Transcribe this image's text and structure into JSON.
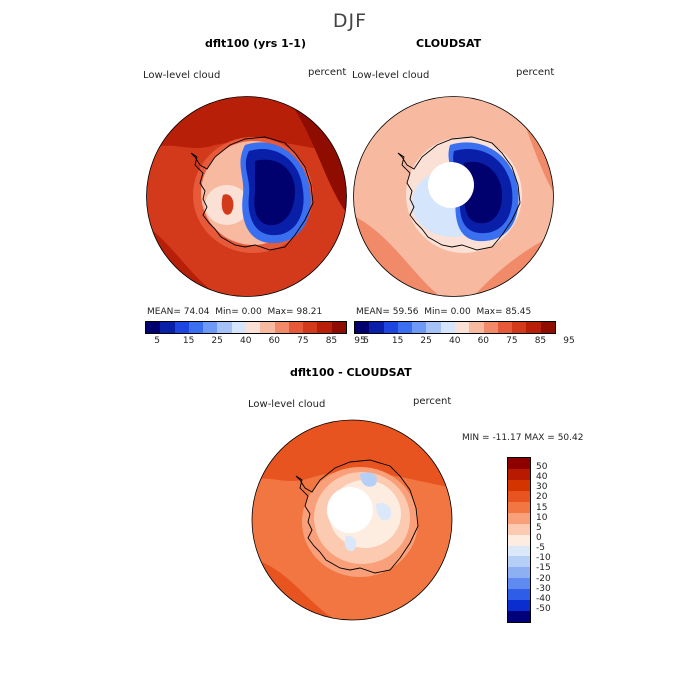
{
  "title": "DJF",
  "panels": [
    {
      "title": "dflt100 (yrs 1-1)",
      "variable": "Low-level cloud",
      "units": "percent",
      "stats": {
        "mean_label": "MEAN=",
        "mean": "74.04",
        "min_label": "Min=",
        "min": "0.00",
        "max_label": "Max=",
        "max": "98.21"
      }
    },
    {
      "title": "CLOUDSAT",
      "variable": "Low-level cloud",
      "units": "percent",
      "stats": {
        "mean_label": "MEAN=",
        "mean": "59.56",
        "min_label": "Min=",
        "min": "0.00",
        "max_label": "Max=",
        "max": "85.45"
      }
    },
    {
      "title": "dflt100 - CLOUDSAT",
      "variable": "Low-level cloud",
      "units": "percent",
      "stats": {
        "min_label": "MIN =",
        "min": "-11.17",
        "max_label": "MAX =",
        "max": "50.42"
      }
    }
  ],
  "colorbar_top": {
    "ticks": [
      "5",
      "15",
      "25",
      "40",
      "60",
      "75",
      "85",
      "95"
    ],
    "colors": [
      "#00006e",
      "#0a1fa8",
      "#1f45e0",
      "#3a6ff0",
      "#6e9af5",
      "#a4c2f8",
      "#d5e5fb",
      "#fbe0d5",
      "#f7b9a0",
      "#f08a68",
      "#e65a3a",
      "#d33a1c",
      "#b81f08",
      "#8e0c00"
    ]
  },
  "colorbar_diff": {
    "labels": [
      "50",
      "40",
      "30",
      "20",
      "15",
      "10",
      "5",
      "0",
      "-5",
      "-10",
      "-15",
      "-20",
      "-30",
      "-40",
      "-50"
    ],
    "colors": [
      "#8e0000",
      "#b81a00",
      "#d43500",
      "#e85420",
      "#f27642",
      "#f9a07a",
      "#fccab0",
      "#fdece0",
      "#dbe8fa",
      "#b6cff6",
      "#8db0f2",
      "#5f8af0",
      "#2e5ee8",
      "#0a2dd0",
      "#00007a"
    ]
  }
}
